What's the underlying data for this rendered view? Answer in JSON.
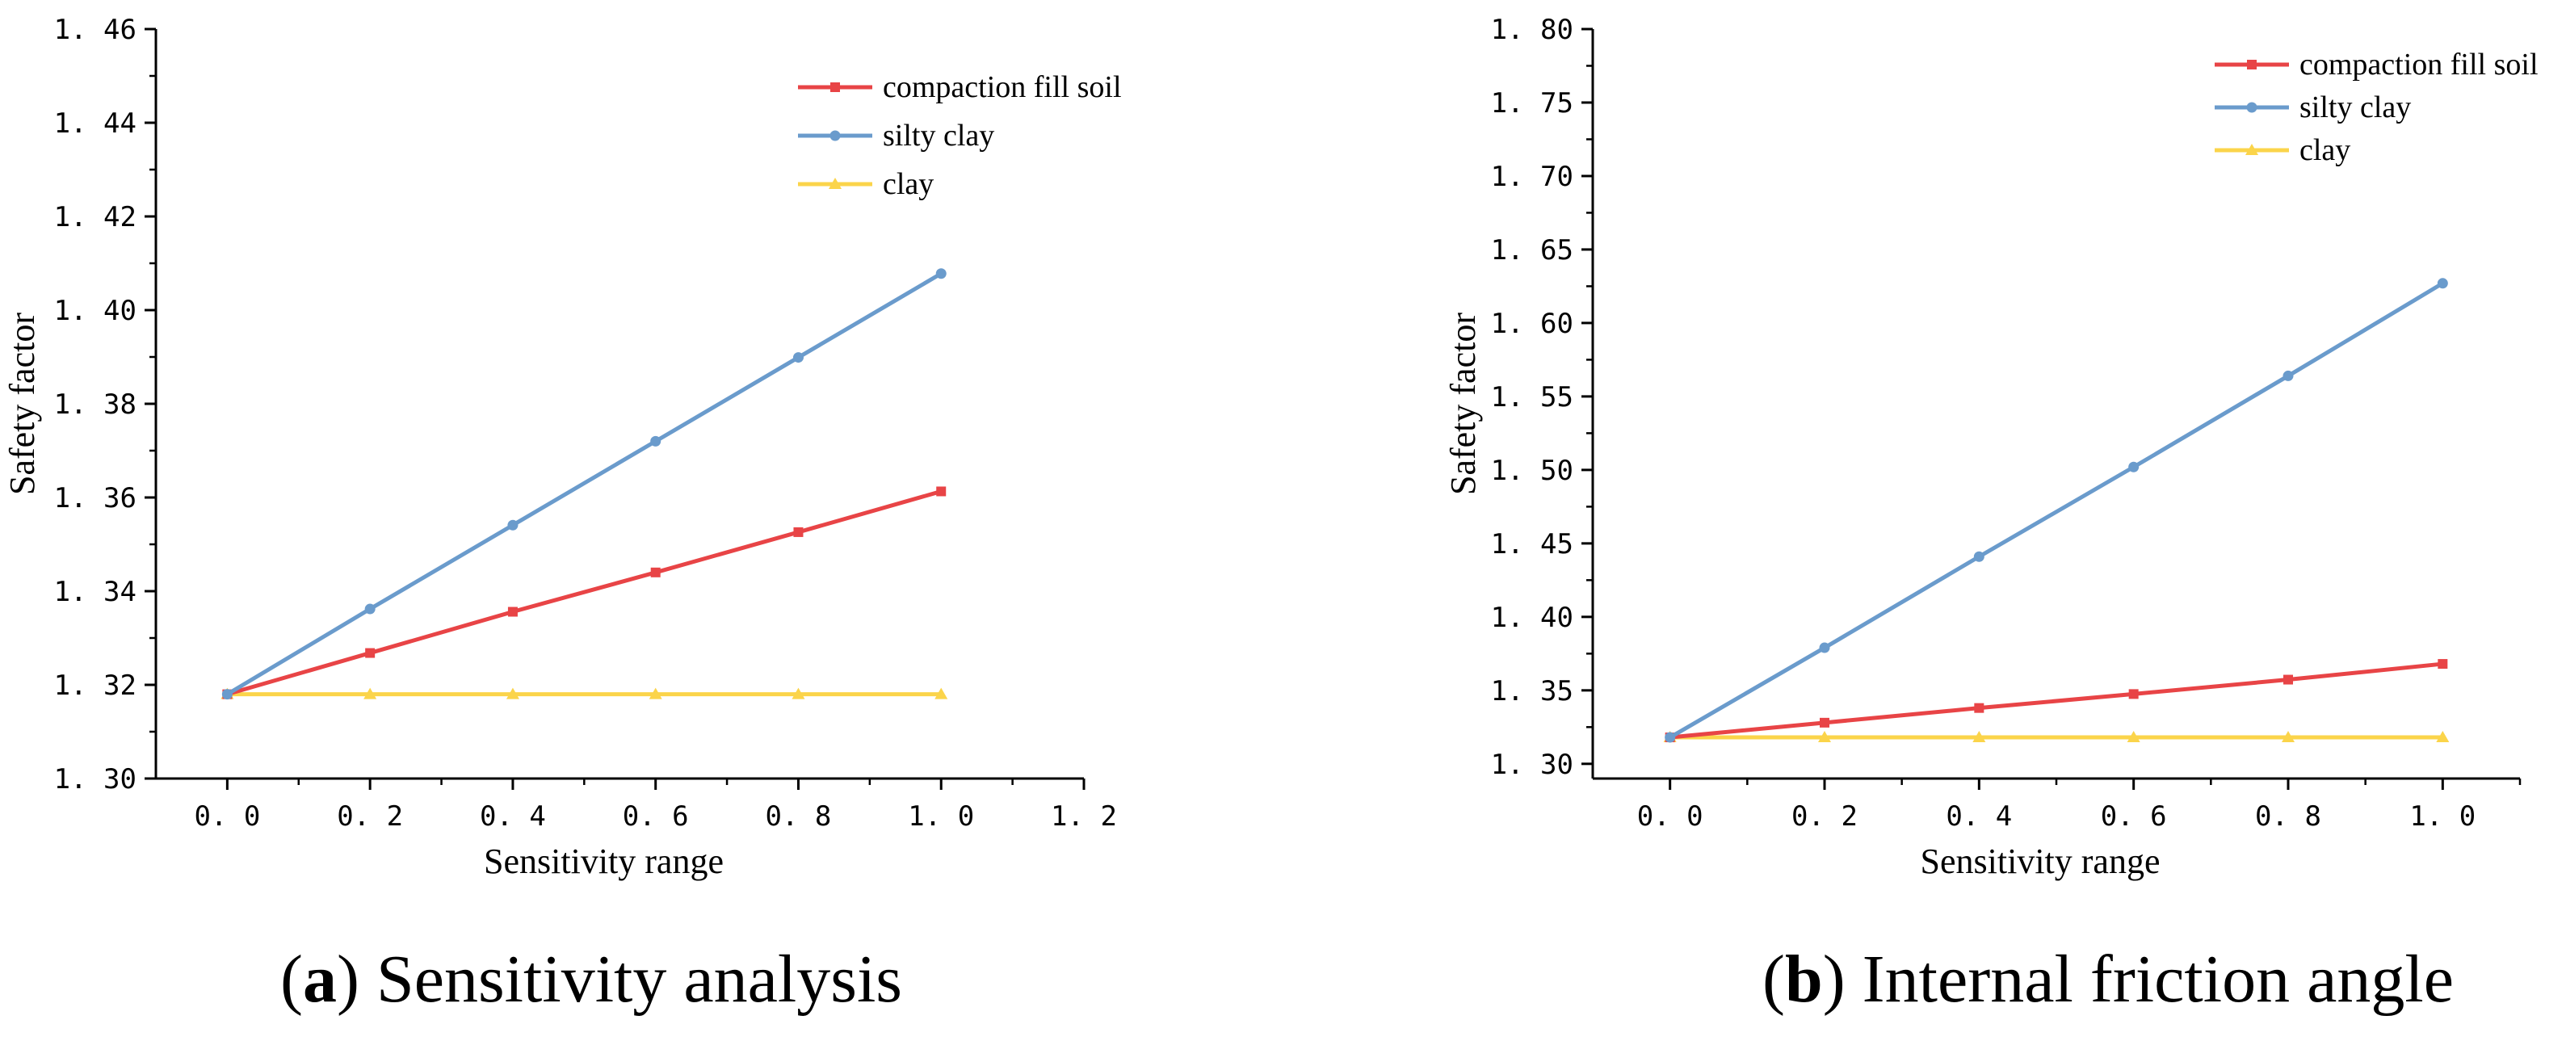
{
  "chart_data": [
    {
      "type": "line",
      "caption_letter": "a",
      "caption_open": "(",
      "caption_close": ")",
      "caption_text": "Sensitivity analysis",
      "xlabel": "Sensitivity range",
      "ylabel": "Safety factor",
      "xlim": [
        -0.1,
        1.2
      ],
      "ylim": [
        1.3,
        1.46
      ],
      "xticks": [
        0.0,
        0.2,
        0.4,
        0.6,
        0.8,
        1.0,
        1.2
      ],
      "xtick_labels": [
        "0. 0",
        "0. 2",
        "0. 4",
        "0. 6",
        "0. 8",
        "1. 0",
        "1. 2"
      ],
      "yticks": [
        1.3,
        1.32,
        1.34,
        1.36,
        1.38,
        1.4,
        1.42,
        1.44,
        1.46
      ],
      "ytick_labels": [
        "1. 30",
        "1. 32",
        "1. 34",
        "1. 36",
        "1. 38",
        "1. 40",
        "1. 42",
        "1. 44",
        "1. 46"
      ],
      "legend_position": "top-right",
      "x": [
        0.0,
        0.2,
        0.4,
        0.6,
        0.8,
        1.0
      ],
      "series": [
        {
          "name": "compaction fill soil",
          "color": "#e84446",
          "marker": "square",
          "values": [
            1.318,
            1.3268,
            1.3356,
            1.344,
            1.3526,
            1.3613
          ]
        },
        {
          "name": "silty clay",
          "color": "#6a9bcc",
          "marker": "circle",
          "values": [
            1.318,
            1.3362,
            1.3541,
            1.372,
            1.3899,
            1.4078
          ]
        },
        {
          "name": "clay",
          "color": "#fbd44a",
          "marker": "triangle",
          "values": [
            1.318,
            1.318,
            1.318,
            1.318,
            1.318,
            1.318
          ]
        }
      ]
    },
    {
      "type": "line",
      "caption_letter": "b",
      "caption_open": "(",
      "caption_close": ")",
      "caption_text": "Internal friction angle",
      "xlabel": "Sensitivity range",
      "ylabel": "Safety factor",
      "xlim": [
        -0.1,
        1.1
      ],
      "ylim": [
        1.29,
        1.8
      ],
      "xticks": [
        0.0,
        0.2,
        0.4,
        0.6,
        0.8,
        1.0
      ],
      "xtick_labels": [
        "0. 0",
        "0. 2",
        "0. 4",
        "0. 6",
        "0. 8",
        "1. 0"
      ],
      "yticks": [
        1.3,
        1.35,
        1.4,
        1.45,
        1.5,
        1.55,
        1.6,
        1.65,
        1.7,
        1.75,
        1.8
      ],
      "ytick_labels": [
        "1. 30",
        "1. 35",
        "1. 40",
        "1. 45",
        "1. 50",
        "1. 55",
        "1. 60",
        "1. 65",
        "1. 70",
        "1. 75",
        "1. 80"
      ],
      "legend_position": "top-right",
      "x": [
        0.0,
        0.2,
        0.4,
        0.6,
        0.8,
        1.0
      ],
      "series": [
        {
          "name": "compaction fill soil",
          "color": "#e84446",
          "marker": "square",
          "values": [
            1.318,
            1.328,
            1.338,
            1.3475,
            1.3573,
            1.368
          ]
        },
        {
          "name": "silty clay",
          "color": "#6a9bcc",
          "marker": "circle",
          "values": [
            1.318,
            1.379,
            1.441,
            1.502,
            1.564,
            1.627
          ]
        },
        {
          "name": "clay",
          "color": "#fbd44a",
          "marker": "triangle",
          "values": [
            1.318,
            1.318,
            1.318,
            1.318,
            1.318,
            1.318
          ]
        }
      ]
    }
  ]
}
